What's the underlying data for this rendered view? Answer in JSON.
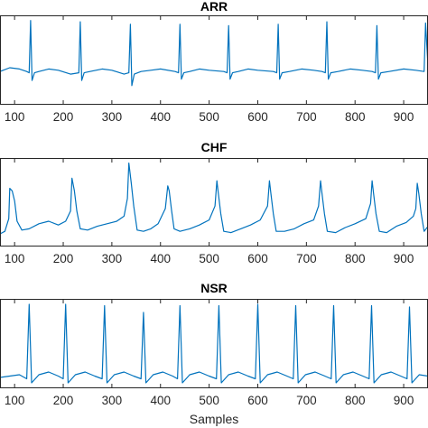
{
  "chart_data": [
    {
      "type": "line",
      "title": "ARR",
      "xlabel": "",
      "xlim": [
        70,
        950
      ],
      "ylim": [
        -1.3,
        2.2
      ],
      "xticks": [
        100,
        200,
        300,
        400,
        500,
        600,
        700,
        800,
        900
      ],
      "series": [
        {
          "color": "#0072BD",
          "beats": [
            133,
            235,
            338,
            440,
            540,
            642,
            742,
            845,
            945
          ],
          "x": [
            70,
            90,
            110,
            125,
            130,
            133,
            136,
            141,
            150,
            170,
            190,
            215,
            232,
            235,
            238,
            243,
            255,
            280,
            300,
            325,
            335,
            338,
            341,
            346,
            360,
            380,
            400,
            430,
            437,
            440,
            443,
            448,
            460,
            480,
            500,
            530,
            537,
            540,
            543,
            548,
            560,
            580,
            600,
            632,
            639,
            642,
            645,
            650,
            665,
            690,
            715,
            732,
            739,
            742,
            745,
            750,
            765,
            790,
            815,
            835,
            842,
            845,
            848,
            853,
            870,
            900,
            925,
            942,
            945,
            950
          ],
          "y": [
            0.0,
            0.15,
            0.1,
            0.0,
            -0.05,
            2.0,
            -0.35,
            -0.05,
            0.0,
            0.1,
            0.05,
            -0.1,
            -0.05,
            1.95,
            -0.35,
            -0.05,
            0.0,
            0.1,
            0.05,
            -0.1,
            -0.05,
            1.85,
            -0.55,
            -0.1,
            0.0,
            0.05,
            0.1,
            0.0,
            -0.05,
            1.85,
            -0.3,
            -0.05,
            0.0,
            0.1,
            0.05,
            0.0,
            -0.05,
            1.8,
            -0.3,
            -0.05,
            0.0,
            0.1,
            0.05,
            0.0,
            -0.05,
            1.85,
            -0.3,
            -0.05,
            0.0,
            0.1,
            0.05,
            0.0,
            -0.05,
            1.95,
            -0.3,
            -0.05,
            0.0,
            0.1,
            0.05,
            0.0,
            -0.05,
            1.8,
            -0.3,
            -0.05,
            0.0,
            0.1,
            0.05,
            0.0,
            1.9,
            0.2
          ]
        }
      ]
    },
    {
      "type": "line",
      "title": "CHF",
      "xlabel": "",
      "xlim": [
        70,
        950
      ],
      "ylim": [
        -0.9,
        2.6
      ],
      "xticks": [
        100,
        200,
        300,
        400,
        500,
        600,
        700,
        800,
        900
      ],
      "series": [
        {
          "color": "#0072BD",
          "beats": [
            90,
            218,
            335,
            415,
            516,
            624,
            729,
            835,
            928
          ],
          "x": [
            70,
            80,
            88,
            90,
            95,
            100,
            105,
            115,
            130,
            150,
            170,
            190,
            205,
            215,
            218,
            223,
            228,
            235,
            250,
            270,
            290,
            310,
            325,
            332,
            335,
            340,
            345,
            352,
            365,
            380,
            395,
            410,
            415,
            418,
            423,
            428,
            440,
            460,
            480,
            500,
            512,
            516,
            519,
            524,
            530,
            545,
            565,
            585,
            605,
            620,
            624,
            627,
            632,
            638,
            655,
            675,
            695,
            715,
            725,
            729,
            732,
            737,
            743,
            760,
            780,
            800,
            822,
            832,
            835,
            838,
            843,
            850,
            865,
            885,
            905,
            920,
            925,
            928,
            931,
            936,
            942,
            950
          ],
          "y": [
            -0.4,
            -0.3,
            0.2,
            1.4,
            1.3,
            0.9,
            0.1,
            -0.25,
            -0.2,
            0.0,
            0.1,
            -0.05,
            0.1,
            0.5,
            1.8,
            1.3,
            0.5,
            -0.2,
            -0.25,
            -0.1,
            0.0,
            0.1,
            0.3,
            1.0,
            2.4,
            1.6,
            0.7,
            -0.25,
            -0.3,
            -0.2,
            0.0,
            0.6,
            1.5,
            1.3,
            0.5,
            -0.2,
            -0.3,
            -0.2,
            -0.05,
            0.15,
            0.7,
            1.7,
            1.2,
            0.4,
            -0.3,
            -0.35,
            -0.2,
            -0.05,
            0.15,
            0.7,
            1.7,
            1.2,
            0.4,
            -0.3,
            -0.3,
            -0.2,
            0.0,
            0.15,
            0.7,
            1.7,
            1.2,
            0.4,
            -0.3,
            -0.35,
            -0.15,
            0.0,
            0.2,
            0.8,
            1.7,
            1.2,
            0.4,
            -0.3,
            -0.35,
            -0.1,
            0.05,
            0.3,
            0.6,
            1.6,
            1.2,
            0.4,
            -0.3,
            -0.1
          ]
        }
      ]
    },
    {
      "type": "line",
      "title": "NSR",
      "xlabel": "Samples",
      "xlim": [
        70,
        950
      ],
      "ylim": [
        -0.4,
        2.9
      ],
      "xticks": [
        100,
        200,
        300,
        400,
        500,
        600,
        700,
        800,
        900
      ],
      "series": [
        {
          "color": "#0072BD",
          "beats": [
            130,
            205,
            285,
            365,
            440,
            520,
            600,
            678,
            756,
            834,
            912
          ],
          "x": [
            70,
            90,
            110,
            125,
            130,
            135,
            150,
            170,
            190,
            200,
            205,
            210,
            225,
            245,
            265,
            280,
            285,
            290,
            305,
            325,
            345,
            360,
            365,
            370,
            385,
            405,
            425,
            435,
            440,
            445,
            460,
            480,
            500,
            515,
            520,
            525,
            540,
            560,
            580,
            595,
            600,
            605,
            620,
            640,
            660,
            673,
            678,
            683,
            698,
            718,
            738,
            751,
            756,
            761,
            776,
            796,
            816,
            829,
            834,
            839,
            854,
            874,
            894,
            907,
            912,
            917,
            932,
            950
          ],
          "y": [
            0.0,
            0.05,
            0.1,
            -0.05,
            2.7,
            -0.2,
            0.1,
            0.2,
            0.05,
            -0.05,
            2.7,
            -0.2,
            0.1,
            0.2,
            0.05,
            -0.05,
            2.65,
            -0.2,
            0.1,
            0.2,
            0.05,
            -0.05,
            2.4,
            -0.2,
            0.1,
            0.2,
            0.05,
            -0.05,
            2.65,
            -0.2,
            0.1,
            0.2,
            0.05,
            -0.05,
            2.65,
            -0.2,
            0.1,
            0.2,
            0.05,
            -0.05,
            2.7,
            -0.2,
            0.1,
            0.2,
            0.05,
            -0.05,
            2.65,
            -0.2,
            0.1,
            0.2,
            0.05,
            -0.05,
            2.65,
            -0.2,
            0.1,
            0.2,
            0.05,
            -0.05,
            2.65,
            -0.2,
            0.1,
            0.2,
            0.05,
            -0.05,
            2.6,
            -0.2,
            0.1,
            0.05
          ]
        }
      ]
    }
  ]
}
